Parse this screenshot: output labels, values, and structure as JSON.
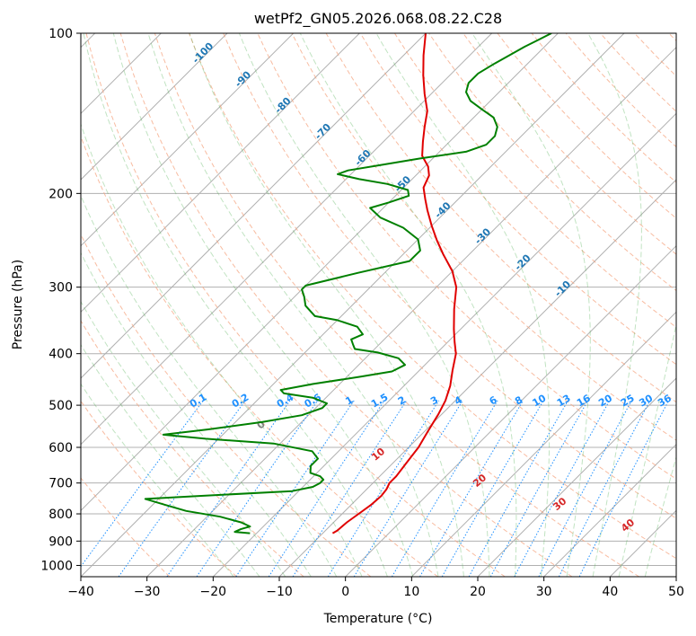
{
  "chart_data": {
    "type": "line",
    "title": "wetPf2_GN05.2026.068.08.22.C28",
    "xlabel": "Temperature (°C)",
    "ylabel": "Pressure (hPa)",
    "xlim": [
      -40,
      50
    ],
    "ylim": [
      1050,
      100
    ],
    "y_scale": "log",
    "grid": true,
    "x_ticks": [
      -40,
      -30,
      -20,
      -10,
      0,
      10,
      20,
      30,
      40,
      50
    ],
    "x_tick_labels": [
      "−40",
      "−30",
      "−20",
      "−10",
      "0",
      "10",
      "20",
      "30",
      "40",
      "50"
    ],
    "y_ticks": [
      1000,
      900,
      800,
      700,
      600,
      500,
      400,
      300,
      200,
      100
    ],
    "y_tick_labels": [
      "1000",
      "900",
      "800",
      "700",
      "600",
      "500",
      "400",
      "300",
      "200",
      "100"
    ],
    "skew_isotherm_labels": [
      {
        "t": -100,
        "label": "-100"
      },
      {
        "t": -90,
        "label": "-90"
      },
      {
        "t": -80,
        "label": "-80"
      },
      {
        "t": -70,
        "label": "-70"
      },
      {
        "t": -60,
        "label": "-60"
      },
      {
        "t": -50,
        "label": "-50"
      },
      {
        "t": -40,
        "label": "-40"
      },
      {
        "t": -30,
        "label": "-30"
      },
      {
        "t": -20,
        "label": "-20"
      },
      {
        "t": -10,
        "label": "-10"
      }
    ],
    "mixing_ratio_labels": [
      "0.1",
      "0.2",
      "0.4",
      "0.6",
      "1",
      "1.5",
      "2",
      "3",
      "4",
      "6",
      "8",
      "10",
      "13",
      "16",
      "20",
      "25",
      "30",
      "36"
    ],
    "mixing_ratio_values": [
      0.1,
      0.2,
      0.4,
      0.6,
      1,
      1.5,
      2,
      3,
      4,
      6,
      8,
      10,
      13,
      16,
      20,
      25,
      30,
      36
    ],
    "moist_adiabat_labels": [
      {
        "t": 0,
        "label": "0"
      },
      {
        "t": 10,
        "label": "10"
      },
      {
        "t": 20,
        "label": "20"
      },
      {
        "t": 30,
        "label": "30"
      },
      {
        "t": 40,
        "label": "40"
      }
    ],
    "series": [
      {
        "color": "#e00000",
        "points": [
          [
            -8.5,
            870
          ],
          [
            -8.2,
            860
          ],
          [
            -8,
            830
          ],
          [
            -7.5,
            800
          ],
          [
            -7,
            770
          ],
          [
            -6.8,
            740
          ],
          [
            -7,
            720
          ],
          [
            -7.5,
            700
          ],
          [
            -7.5,
            680
          ],
          [
            -8,
            640
          ],
          [
            -8.5,
            600
          ],
          [
            -9.5,
            560
          ],
          [
            -10.5,
            520
          ],
          [
            -11.5,
            490
          ],
          [
            -13,
            460
          ],
          [
            -15,
            430
          ],
          [
            -17,
            400
          ],
          [
            -19,
            380
          ],
          [
            -21,
            360
          ],
          [
            -24,
            330
          ],
          [
            -27,
            300
          ],
          [
            -30,
            280
          ],
          [
            -34,
            260
          ],
          [
            -37,
            245
          ],
          [
            -40,
            230
          ],
          [
            -43,
            215
          ],
          [
            -45,
            205
          ],
          [
            -47,
            195
          ],
          [
            -48,
            185
          ],
          [
            -49.5,
            178
          ],
          [
            -52,
            170
          ],
          [
            -54,
            160
          ],
          [
            -56,
            150
          ],
          [
            -58,
            140
          ],
          [
            -61,
            130
          ],
          [
            -64,
            120
          ],
          [
            -67,
            110
          ],
          [
            -70,
            100
          ]
        ]
      },
      {
        "color": "#008000",
        "points": [
          [
            -21,
            870
          ],
          [
            -23.5,
            865
          ],
          [
            -23,
            855
          ],
          [
            -22,
            845
          ],
          [
            -24,
            830
          ],
          [
            -28,
            810
          ],
          [
            -34,
            790
          ],
          [
            -38,
            770
          ],
          [
            -42,
            750
          ],
          [
            -34,
            740
          ],
          [
            -21,
            725
          ],
          [
            -18.5,
            712
          ],
          [
            -18,
            700
          ],
          [
            -18,
            690
          ],
          [
            -19,
            680
          ],
          [
            -21,
            670
          ],
          [
            -22,
            650
          ],
          [
            -22,
            630
          ],
          [
            -24,
            610
          ],
          [
            -31,
            590
          ],
          [
            -42,
            578
          ],
          [
            -49,
            568
          ],
          [
            -43,
            555
          ],
          [
            -36,
            538
          ],
          [
            -31,
            522
          ],
          [
            -29,
            506
          ],
          [
            -29,
            496
          ],
          [
            -32,
            484
          ],
          [
            -37,
            475
          ],
          [
            -38,
            468
          ],
          [
            -34,
            456
          ],
          [
            -28,
            442
          ],
          [
            -24,
            432
          ],
          [
            -23,
            420
          ],
          [
            -25,
            408
          ],
          [
            -29,
            398
          ],
          [
            -33,
            392
          ],
          [
            -34,
            384
          ],
          [
            -35,
            376
          ],
          [
            -34,
            368
          ],
          [
            -36,
            356
          ],
          [
            -40,
            346
          ],
          [
            -44,
            340
          ],
          [
            -47,
            325
          ],
          [
            -48.5,
            313
          ],
          [
            -50,
            303
          ],
          [
            -50,
            298
          ],
          [
            -44,
            282
          ],
          [
            -38,
            268
          ],
          [
            -38,
            256
          ],
          [
            -40,
            244
          ],
          [
            -44,
            232
          ],
          [
            -49,
            222
          ],
          [
            -52,
            213
          ],
          [
            -50,
            208
          ],
          [
            -48,
            202
          ],
          [
            -49,
            197
          ],
          [
            -53,
            192
          ],
          [
            -58,
            188
          ],
          [
            -62,
            184
          ],
          [
            -61,
            181
          ],
          [
            -57,
            177
          ],
          [
            -52,
            172
          ],
          [
            -46,
            167
          ],
          [
            -44,
            162
          ],
          [
            -44,
            156
          ],
          [
            -45,
            150
          ],
          [
            -47,
            144
          ],
          [
            -50,
            139
          ],
          [
            -53,
            134
          ],
          [
            -55,
            129
          ],
          [
            -56,
            124
          ],
          [
            -56,
            119
          ],
          [
            -55,
            114
          ],
          [
            -54,
            110
          ],
          [
            -53,
            106
          ],
          [
            -52,
            103
          ],
          [
            -51,
            100
          ]
        ]
      }
    ]
  }
}
